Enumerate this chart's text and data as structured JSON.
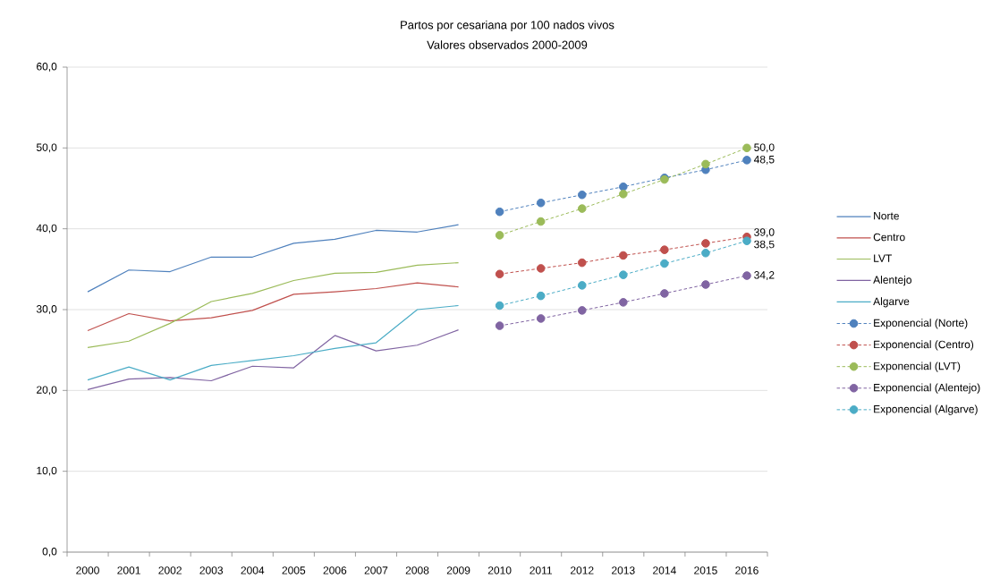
{
  "chart_data": {
    "type": "line",
    "title": "Partos por cesariana por 100 nados vivos",
    "subtitle": "Valores observados 2000-2009",
    "categories": [
      "2000",
      "2001",
      "2002",
      "2003",
      "2004",
      "2005",
      "2006",
      "2007",
      "2008",
      "2009",
      "2010",
      "2011",
      "2012",
      "2013",
      "2014",
      "2015",
      "2016"
    ],
    "ylim": [
      0,
      60
    ],
    "yticks": [
      {
        "value": 0,
        "label": "0,0"
      },
      {
        "value": 10,
        "label": "10,0"
      },
      {
        "value": 20,
        "label": "20,0"
      },
      {
        "value": 30,
        "label": "30,0"
      },
      {
        "value": 40,
        "label": "40,0"
      },
      {
        "value": 50,
        "label": "50,0"
      },
      {
        "value": 60,
        "label": "60,0"
      }
    ],
    "grid": "y",
    "legend": "right",
    "series": [
      {
        "name": "Norte",
        "color": "#4f81bd",
        "line_style": "solid",
        "marker": "none",
        "values": [
          32.2,
          34.9,
          34.7,
          36.5,
          36.5,
          38.2,
          38.7,
          39.8,
          39.6,
          40.5,
          null,
          null,
          null,
          null,
          null,
          null,
          null
        ]
      },
      {
        "name": "Centro",
        "color": "#c0504d",
        "line_style": "solid",
        "marker": "none",
        "values": [
          27.4,
          29.5,
          28.6,
          29.0,
          29.9,
          31.9,
          32.2,
          32.6,
          33.3,
          32.8,
          null,
          null,
          null,
          null,
          null,
          null,
          null
        ]
      },
      {
        "name": "LVT",
        "color": "#9bbb59",
        "line_style": "solid",
        "marker": "none",
        "values": [
          25.3,
          26.1,
          28.3,
          31.0,
          32.0,
          33.6,
          34.5,
          34.6,
          35.5,
          35.8,
          null,
          null,
          null,
          null,
          null,
          null,
          null
        ]
      },
      {
        "name": "Alentejo",
        "color": "#8064a2",
        "line_style": "solid",
        "marker": "none",
        "values": [
          20.1,
          21.4,
          21.6,
          21.2,
          23.0,
          22.8,
          26.8,
          24.9,
          25.6,
          27.5,
          null,
          null,
          null,
          null,
          null,
          null,
          null
        ]
      },
      {
        "name": "Algarve",
        "color": "#4bacc6",
        "line_style": "solid",
        "marker": "none",
        "values": [
          21.3,
          22.9,
          21.3,
          23.1,
          23.7,
          24.3,
          25.2,
          25.9,
          30.0,
          30.5,
          null,
          null,
          null,
          null,
          null,
          null,
          null
        ]
      },
      {
        "name": "Exponencial (Norte)",
        "color": "#4f81bd",
        "line_style": "dashed",
        "marker": "circle",
        "values": [
          null,
          null,
          null,
          null,
          null,
          null,
          null,
          null,
          null,
          null,
          42.1,
          43.2,
          44.2,
          45.2,
          46.3,
          47.3,
          48.5
        ],
        "value_labels": [
          null,
          null,
          null,
          null,
          null,
          null,
          null,
          null,
          null,
          null,
          null,
          null,
          null,
          null,
          null,
          null,
          "48,5"
        ]
      },
      {
        "name": "Exponencial (Centro)",
        "color": "#c0504d",
        "line_style": "dashed",
        "marker": "circle",
        "values": [
          null,
          null,
          null,
          null,
          null,
          null,
          null,
          null,
          null,
          null,
          34.4,
          35.1,
          35.8,
          36.7,
          37.4,
          38.2,
          39.0
        ],
        "value_labels": [
          null,
          null,
          null,
          null,
          null,
          null,
          null,
          null,
          null,
          null,
          null,
          null,
          null,
          null,
          null,
          null,
          "39,0"
        ]
      },
      {
        "name": "Exponencial (LVT)",
        "color": "#9bbb59",
        "line_style": "dashed",
        "marker": "circle",
        "values": [
          null,
          null,
          null,
          null,
          null,
          null,
          null,
          null,
          null,
          null,
          39.2,
          40.9,
          42.5,
          44.3,
          46.1,
          48.0,
          50.0
        ],
        "value_labels": [
          null,
          null,
          null,
          null,
          null,
          null,
          null,
          null,
          null,
          null,
          null,
          null,
          null,
          null,
          null,
          null,
          "50,0"
        ]
      },
      {
        "name": "Exponencial (Alentejo)",
        "color": "#8064a2",
        "line_style": "dashed",
        "marker": "circle",
        "values": [
          null,
          null,
          null,
          null,
          null,
          null,
          null,
          null,
          null,
          null,
          28.0,
          28.9,
          29.9,
          30.9,
          32.0,
          33.1,
          34.2
        ],
        "value_labels": [
          null,
          null,
          null,
          null,
          null,
          null,
          null,
          null,
          null,
          null,
          null,
          null,
          null,
          null,
          null,
          null,
          "34,2"
        ]
      },
      {
        "name": "Exponencial (Algarve)",
        "color": "#4bacc6",
        "line_style": "dashed",
        "marker": "circle",
        "values": [
          null,
          null,
          null,
          null,
          null,
          null,
          null,
          null,
          null,
          null,
          30.5,
          31.7,
          33.0,
          34.3,
          35.7,
          37.0,
          38.5
        ],
        "value_labels": [
          null,
          null,
          null,
          null,
          null,
          null,
          null,
          null,
          null,
          null,
          null,
          null,
          null,
          null,
          null,
          null,
          "38,5"
        ]
      }
    ]
  }
}
